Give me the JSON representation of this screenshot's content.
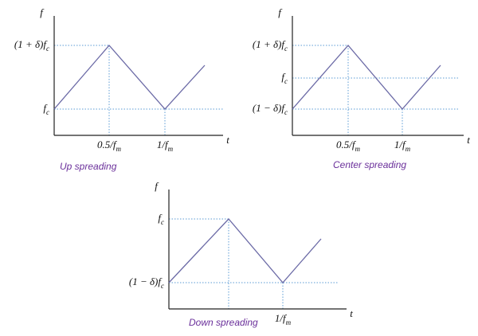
{
  "panels": [
    {
      "title": "Up spreading",
      "y_axis": "f",
      "x_axis": "t",
      "y_labels": [
        {
          "main": "(1 + δ)f",
          "sub": "c"
        },
        {
          "main": "f",
          "sub": "c"
        }
      ],
      "x_labels": [
        {
          "main": "0.5/f",
          "sub": "m"
        },
        {
          "main": "1/f",
          "sub": "m"
        }
      ]
    },
    {
      "title": "Center spreading",
      "y_axis": "f",
      "x_axis": "t",
      "y_labels": [
        {
          "main": "(1 + δ)f",
          "sub": "c"
        },
        {
          "main": "f",
          "sub": "c"
        },
        {
          "main": "(1 − δ)f",
          "sub": "c"
        }
      ],
      "x_labels": [
        {
          "main": "0.5/f",
          "sub": "m"
        },
        {
          "main": "1/f",
          "sub": "m"
        }
      ]
    },
    {
      "title": "Down spreading",
      "y_axis": "f",
      "x_axis": "t",
      "y_labels": [
        {
          "main": "f",
          "sub": "c"
        },
        {
          "main": "(1 − δ)f",
          "sub": "c"
        }
      ],
      "x_labels": [
        {
          "main": "1/f",
          "sub": "m"
        }
      ]
    }
  ]
}
